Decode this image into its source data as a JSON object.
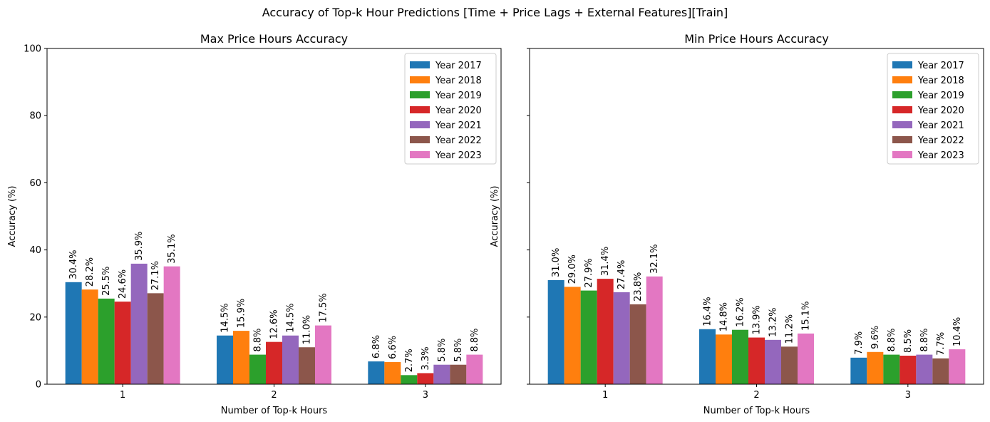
{
  "figure": {
    "suptitle": "Accuracy of Top-k Hour Predictions [Time + Price Lags + External Features][Train]"
  },
  "chart_data": [
    {
      "type": "bar",
      "title": "Max Price Hours Accuracy",
      "xlabel": "Number of Top-k Hours",
      "ylabel": "Accuracy (%)",
      "ylim": [
        0,
        100
      ],
      "yticks": [
        0,
        20,
        40,
        60,
        80,
        100
      ],
      "categories": [
        "1",
        "2",
        "3"
      ],
      "legend": "top-right",
      "grid": false,
      "series": [
        {
          "name": "Year 2017",
          "color": "#1f77b4",
          "values": [
            30.4,
            14.5,
            6.8
          ],
          "labels": [
            "30.4%",
            "14.5%",
            "6.8%"
          ]
        },
        {
          "name": "Year 2018",
          "color": "#ff7f0e",
          "values": [
            28.2,
            15.9,
            6.6
          ],
          "labels": [
            "28.2%",
            "15.9%",
            "6.6%"
          ]
        },
        {
          "name": "Year 2019",
          "color": "#2ca02c",
          "values": [
            25.5,
            8.8,
            2.7
          ],
          "labels": [
            "25.5%",
            "8.8%",
            "2.7%"
          ]
        },
        {
          "name": "Year 2020",
          "color": "#d62728",
          "values": [
            24.6,
            12.6,
            3.3
          ],
          "labels": [
            "24.6%",
            "12.6%",
            "3.3%"
          ]
        },
        {
          "name": "Year 2021",
          "color": "#9467bd",
          "values": [
            35.9,
            14.5,
            5.8
          ],
          "labels": [
            "35.9%",
            "14.5%",
            "5.8%"
          ]
        },
        {
          "name": "Year 2022",
          "color": "#8c564b",
          "values": [
            27.1,
            11.0,
            5.8
          ],
          "labels": [
            "27.1%",
            "11.0%",
            "5.8%"
          ]
        },
        {
          "name": "Year 2023",
          "color": "#e377c2",
          "values": [
            35.1,
            17.5,
            8.8
          ],
          "labels": [
            "35.1%",
            "17.5%",
            "8.8%"
          ]
        }
      ]
    },
    {
      "type": "bar",
      "title": "Min Price Hours Accuracy",
      "xlabel": "Number of Top-k Hours",
      "ylabel": "Accuracy (%)",
      "ylim": [
        0,
        100
      ],
      "yticks": [
        0,
        20,
        40,
        60,
        80,
        100
      ],
      "show_ytick_labels": false,
      "categories": [
        "1",
        "2",
        "3"
      ],
      "legend": "top-right",
      "grid": false,
      "series": [
        {
          "name": "Year 2017",
          "color": "#1f77b4",
          "values": [
            31.0,
            16.4,
            7.9
          ],
          "labels": [
            "31.0%",
            "16.4%",
            "7.9%"
          ]
        },
        {
          "name": "Year 2018",
          "color": "#ff7f0e",
          "values": [
            29.0,
            14.8,
            9.6
          ],
          "labels": [
            "29.0%",
            "14.8%",
            "9.6%"
          ]
        },
        {
          "name": "Year 2019",
          "color": "#2ca02c",
          "values": [
            27.9,
            16.2,
            8.8
          ],
          "labels": [
            "27.9%",
            "16.2%",
            "8.8%"
          ]
        },
        {
          "name": "Year 2020",
          "color": "#d62728",
          "values": [
            31.4,
            13.9,
            8.5
          ],
          "labels": [
            "31.4%",
            "13.9%",
            "8.5%"
          ]
        },
        {
          "name": "Year 2021",
          "color": "#9467bd",
          "values": [
            27.4,
            13.2,
            8.8
          ],
          "labels": [
            "27.4%",
            "13.2%",
            "8.8%"
          ]
        },
        {
          "name": "Year 2022",
          "color": "#8c564b",
          "values": [
            23.8,
            11.2,
            7.7
          ],
          "labels": [
            "23.8%",
            "11.2%",
            "7.7%"
          ]
        },
        {
          "name": "Year 2023",
          "color": "#e377c2",
          "values": [
            32.1,
            15.1,
            10.4
          ],
          "labels": [
            "32.1%",
            "15.1%",
            "10.4%"
          ]
        }
      ]
    }
  ]
}
